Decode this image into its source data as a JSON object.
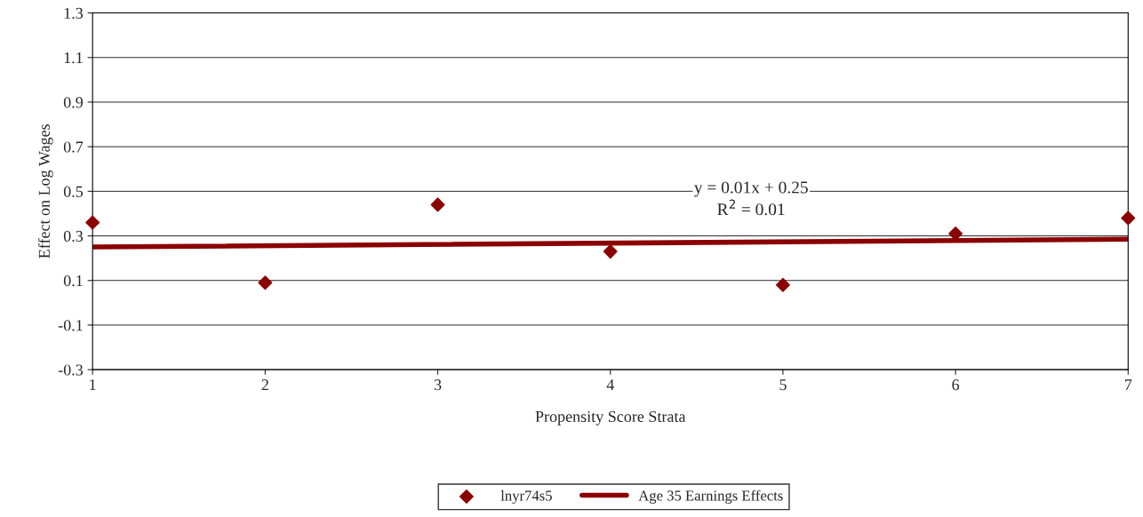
{
  "chart_data": {
    "type": "scatter",
    "xlabel": "Propensity Score Strata",
    "ylabel": "Effect on Log Wages",
    "x": [
      1,
      2,
      3,
      4,
      5,
      6,
      7
    ],
    "series": [
      {
        "name": "lnyr74s5",
        "color": "#8b0000",
        "marker": "diamond",
        "values": [
          0.36,
          0.09,
          0.44,
          0.23,
          0.08,
          0.31,
          0.38
        ]
      },
      {
        "name": "Age 35 Earnings Effects",
        "type": "line",
        "color": "#8b0000",
        "marker": "none",
        "x": [
          1,
          7
        ],
        "values": [
          0.25,
          0.285
        ]
      }
    ],
    "annotations": [
      "y = 0.01x + 0.25",
      "R$^{2}$ = 0.01"
    ],
    "xlim": [
      1,
      7
    ],
    "xticks": [
      1,
      2,
      3,
      4,
      5,
      6,
      7
    ],
    "ylim": [
      -0.3,
      1.3
    ],
    "yticks": [
      -0.3,
      -0.1,
      0.1,
      0.3,
      0.5,
      0.7,
      0.9,
      1.1,
      1.3
    ],
    "grid": "y",
    "legend": "bottom"
  }
}
